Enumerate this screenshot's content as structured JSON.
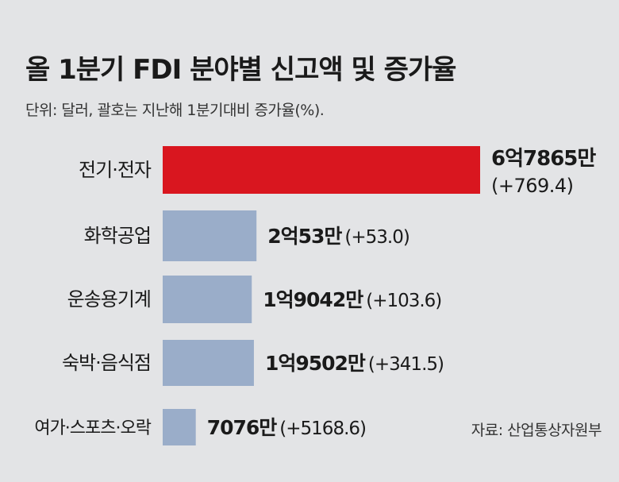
{
  "chart_data": {
    "type": "bar",
    "orientation": "horizontal",
    "title": "올 1분기 FDI 분야별 신고액 및 증가율",
    "subtitle": "단위: 달러, 괄호는 지난해 1분기대비 증가율(%).",
    "source": "자료: 산업통상자원부",
    "categories": [
      "전기·전자",
      "화학공업",
      "운송용기계",
      "숙박·음식점",
      "여가·스포츠·오락"
    ],
    "values": [
      678650000,
      200530000,
      190420000,
      195020000,
      70760000
    ],
    "value_labels": [
      "6억7865만",
      "2억53만",
      "1억9042만",
      "1억9502만",
      "7076만"
    ],
    "growth_labels": [
      "(+769.4)",
      "(+53.0)",
      "(+103.6)",
      "(+341.5)",
      "(+5168.6)"
    ],
    "growth_rates": [
      769.4,
      53.0,
      103.6,
      341.5,
      5168.6
    ],
    "highlight_color": "#d9161f",
    "bar_color": "#9aadc9",
    "grid": false,
    "legend": "none"
  }
}
